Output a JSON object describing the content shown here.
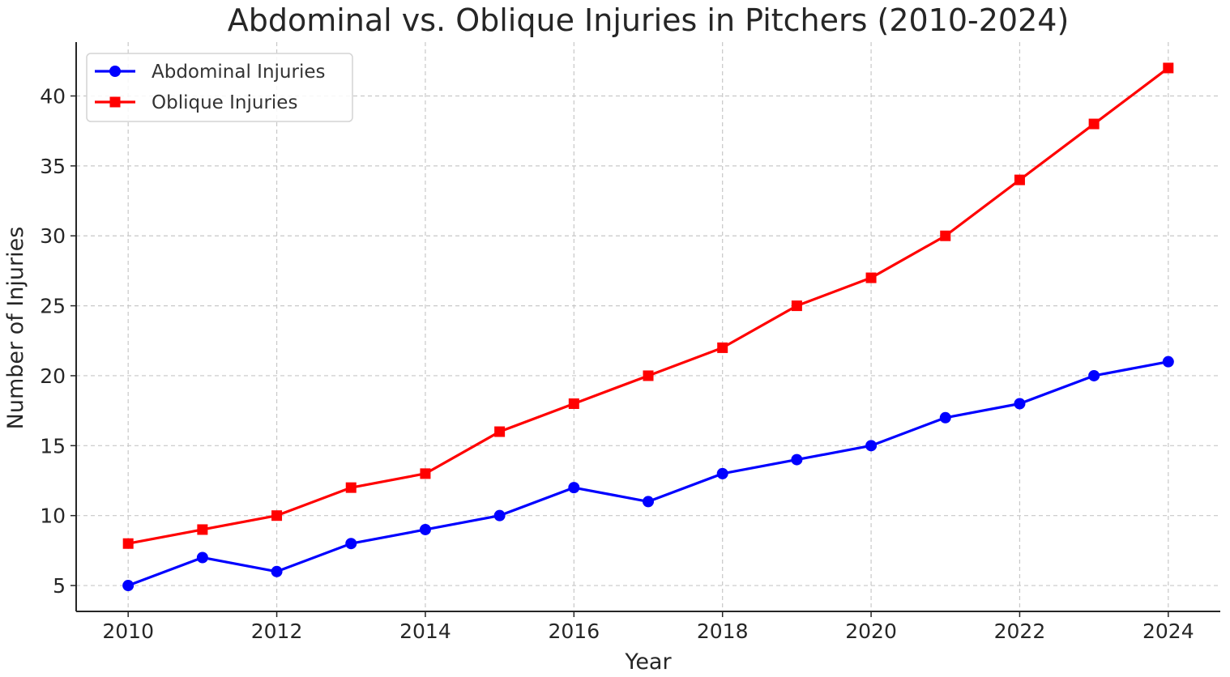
{
  "chart_data": {
    "type": "line",
    "title": "Abdominal vs. Oblique Injuries in Pitchers (2010-2024)",
    "xlabel": "Year",
    "ylabel": "Number of Injuries",
    "x": [
      2010,
      2011,
      2012,
      2013,
      2014,
      2015,
      2016,
      2017,
      2018,
      2019,
      2020,
      2021,
      2022,
      2023,
      2024
    ],
    "xlim": [
      2009.3,
      2024.7
    ],
    "ylim": [
      3.15,
      43.85
    ],
    "xticks": [
      2010,
      2012,
      2014,
      2016,
      2018,
      2020,
      2022,
      2024
    ],
    "xtick_labels": [
      "2010",
      "2012",
      "2014",
      "2016",
      "2018",
      "2020",
      "2022",
      "2024"
    ],
    "yticks": [
      5,
      10,
      15,
      20,
      25,
      30,
      35,
      40
    ],
    "ytick_labels": [
      "5",
      "10",
      "15",
      "20",
      "25",
      "30",
      "35",
      "40"
    ],
    "grid": true,
    "legend_position": "top-left",
    "series": [
      {
        "name": "Abdominal Injuries",
        "color": "#0000ff",
        "marker": "circle",
        "values": [
          5,
          7,
          6,
          8,
          9,
          10,
          12,
          11,
          13,
          14,
          15,
          17,
          18,
          20,
          21
        ]
      },
      {
        "name": "Oblique Injuries",
        "color": "#ff0000",
        "marker": "square",
        "values": [
          8,
          9,
          10,
          12,
          13,
          16,
          18,
          20,
          22,
          25,
          27,
          30,
          34,
          38,
          42
        ]
      }
    ]
  }
}
